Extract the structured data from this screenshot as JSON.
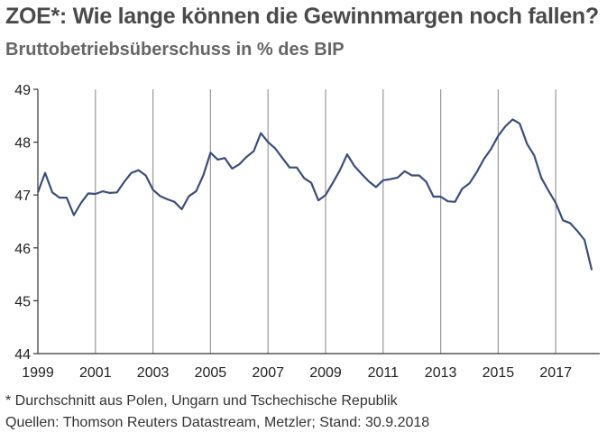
{
  "title": "ZOE*: Wie lange können die Gewinnmargen noch fallen?",
  "subtitle": "Bruttobetriebsüberschuss in % des BIP",
  "footnote": "* Durchschnitt aus Polen, Ungarn und Tschechische Republik",
  "source": "Quellen: Thomson Reuters Datastream, Metzler; Stand: 30.9.2018",
  "colors": {
    "line": "#3b4d7a",
    "grid": "#9a9a9a",
    "axis": "#333333"
  },
  "chart_data": {
    "type": "line",
    "title": "ZOE*: Wie lange können die Gewinnmargen noch fallen?",
    "subtitle": "Bruttobetriebsüberschuss in % des BIP",
    "xlim": [
      1999.0,
      2018.5
    ],
    "ylim": [
      44,
      49
    ],
    "yticks": [
      44,
      45,
      46,
      47,
      48,
      49
    ],
    "xticks": [
      1999,
      2001,
      2003,
      2005,
      2007,
      2009,
      2011,
      2013,
      2015,
      2017
    ],
    "grid": "vertical at year ticks",
    "series": [
      {
        "x": [
          1999.0,
          1999.25,
          1999.5,
          1999.75,
          2000.0,
          2000.25,
          2000.5,
          2000.75,
          2001.0,
          2001.25,
          2001.5,
          2001.75,
          2002.0,
          2002.25,
          2002.5,
          2002.75,
          2003.0,
          2003.25,
          2003.5,
          2003.75,
          2004.0,
          2004.25,
          2004.5,
          2004.75,
          2005.0,
          2005.25,
          2005.5,
          2005.75,
          2006.0,
          2006.25,
          2006.5,
          2006.75,
          2007.0,
          2007.25,
          2007.5,
          2007.75,
          2008.0,
          2008.25,
          2008.5,
          2008.75,
          2009.0,
          2009.25,
          2009.5,
          2009.75,
          2010.0,
          2010.25,
          2010.5,
          2010.75,
          2011.0,
          2011.25,
          2011.5,
          2011.75,
          2012.0,
          2012.25,
          2012.5,
          2012.75,
          2013.0,
          2013.25,
          2013.5,
          2013.75,
          2014.0,
          2014.25,
          2014.5,
          2014.75,
          2015.0,
          2015.25,
          2015.5,
          2015.75,
          2016.0,
          2016.25,
          2016.5,
          2016.75,
          2017.0,
          2017.25,
          2017.5,
          2017.75,
          2018.0,
          2018.25
        ],
        "y": [
          47.05,
          47.42,
          47.05,
          46.95,
          46.95,
          46.62,
          46.85,
          47.03,
          47.02,
          47.07,
          47.04,
          47.05,
          47.25,
          47.42,
          47.47,
          47.37,
          47.1,
          46.98,
          46.92,
          46.87,
          46.73,
          46.98,
          47.07,
          47.37,
          47.8,
          47.67,
          47.7,
          47.5,
          47.58,
          47.72,
          47.83,
          48.17,
          48.0,
          47.88,
          47.7,
          47.52,
          47.52,
          47.32,
          47.23,
          46.9,
          47.0,
          47.23,
          47.47,
          47.77,
          47.55,
          47.4,
          47.26,
          47.15,
          47.28,
          47.3,
          47.33,
          47.45,
          47.37,
          47.37,
          47.25,
          46.97,
          46.97,
          46.88,
          46.87,
          47.12,
          47.22,
          47.43,
          47.68,
          47.87,
          48.12,
          48.3,
          48.43,
          48.35,
          47.97,
          47.75,
          47.32,
          47.08,
          46.85,
          46.52,
          46.47,
          46.32,
          46.15,
          45.58
        ]
      }
    ]
  }
}
